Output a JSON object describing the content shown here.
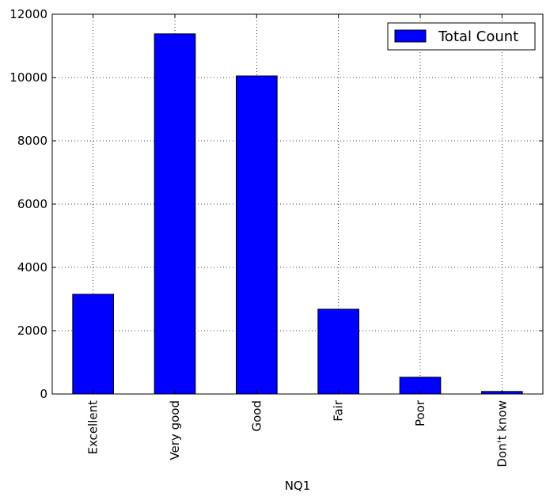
{
  "chart_data": {
    "type": "bar",
    "categories": [
      "Excellent",
      "Very good",
      "Good",
      "Fair",
      "Poor",
      "Don't know"
    ],
    "series": [
      {
        "name": "Total Count",
        "values": [
          3150,
          11380,
          10050,
          2680,
          530,
          80
        ],
        "color": "#0000ff"
      }
    ],
    "xlabel": "NQ1",
    "ylabel": "",
    "ylim": [
      0,
      12000
    ],
    "yticks": [
      0,
      2000,
      4000,
      6000,
      8000,
      10000,
      12000
    ],
    "ytick_labels": [
      "0",
      "2000",
      "4000",
      "6000",
      "8000",
      "10000",
      "12000"
    ],
    "grid": true,
    "grid_style": "dotted",
    "legend_position": "top-right"
  }
}
